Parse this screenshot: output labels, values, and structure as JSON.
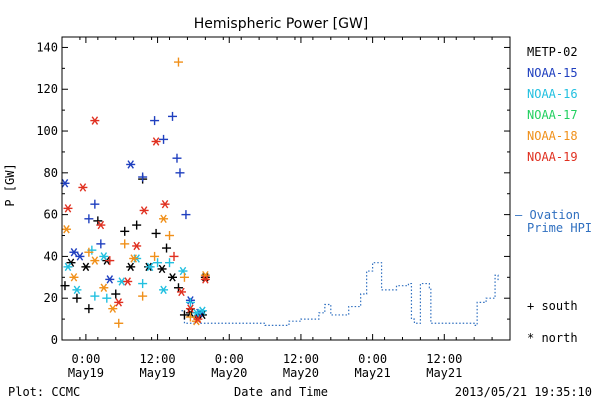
{
  "chart_data": {
    "type": "scatter",
    "title": "Hemispheric Power [GW]",
    "ylabel": "P [GW]",
    "xlabel": "Date and Time",
    "ylim": [
      0,
      145
    ],
    "yticks": [
      0,
      20,
      40,
      60,
      80,
      100,
      120,
      140
    ],
    "xlim": [
      "2013-05-18 20:00",
      "2013-05-21 23:00"
    ],
    "xticks": [
      {
        "x": "2013-05-19 00:00",
        "time": "0:00",
        "date": "May19"
      },
      {
        "x": "2013-05-19 12:00",
        "time": "12:00",
        "date": "May19"
      },
      {
        "x": "2013-05-20 00:00",
        "time": "0:00",
        "date": "May20"
      },
      {
        "x": "2013-05-20 12:00",
        "time": "12:00",
        "date": "May20"
      },
      {
        "x": "2013-05-21 00:00",
        "time": "0:00",
        "date": "May21"
      },
      {
        "x": "2013-05-21 12:00",
        "time": "12:00",
        "date": "May21"
      }
    ],
    "footer_left": "Plot: CCMC",
    "footer_right": "2013/05/21 19:35:10",
    "marker_legend": {
      "south": "+ south",
      "north": "* north"
    },
    "series": [
      {
        "name": "METP-02",
        "color": "#000000",
        "points": [
          {
            "x": "2013-05-18 20:30",
            "y": 26,
            "hemi": "south"
          },
          {
            "x": "2013-05-18 21:30",
            "y": 37,
            "hemi": "north"
          },
          {
            "x": "2013-05-18 22:30",
            "y": 20,
            "hemi": "south"
          },
          {
            "x": "2013-05-19 00:00",
            "y": 35,
            "hemi": "north"
          },
          {
            "x": "2013-05-19 00:30",
            "y": 15,
            "hemi": "south"
          },
          {
            "x": "2013-05-19 02:00",
            "y": 57,
            "hemi": "south"
          },
          {
            "x": "2013-05-19 03:30",
            "y": 38,
            "hemi": "north"
          },
          {
            "x": "2013-05-19 05:00",
            "y": 22,
            "hemi": "south"
          },
          {
            "x": "2013-05-19 06:30",
            "y": 52,
            "hemi": "south"
          },
          {
            "x": "2013-05-19 07:30",
            "y": 35,
            "hemi": "north"
          },
          {
            "x": "2013-05-19 08:30",
            "y": 55,
            "hemi": "south"
          },
          {
            "x": "2013-05-19 09:30",
            "y": 77,
            "hemi": "south"
          },
          {
            "x": "2013-05-19 10:30",
            "y": 35,
            "hemi": "north"
          },
          {
            "x": "2013-05-19 11:45",
            "y": 51,
            "hemi": "south"
          },
          {
            "x": "2013-05-19 12:45",
            "y": 34,
            "hemi": "north"
          },
          {
            "x": "2013-05-19 13:30",
            "y": 44,
            "hemi": "south"
          },
          {
            "x": "2013-05-19 14:30",
            "y": 30,
            "hemi": "north"
          },
          {
            "x": "2013-05-19 15:30",
            "y": 25,
            "hemi": "south"
          },
          {
            "x": "2013-05-19 16:30",
            "y": 12,
            "hemi": "south"
          },
          {
            "x": "2013-05-19 17:30",
            "y": 13,
            "hemi": "north"
          },
          {
            "x": "2013-05-19 18:30",
            "y": 11,
            "hemi": "south"
          },
          {
            "x": "2013-05-19 19:30",
            "y": 12,
            "hemi": "north"
          },
          {
            "x": "2013-05-19 20:00",
            "y": 30,
            "hemi": "north"
          }
        ]
      },
      {
        "name": "NOAA-15",
        "color": "#1f3fbf",
        "points": [
          {
            "x": "2013-05-18 20:30",
            "y": 75,
            "hemi": "north"
          },
          {
            "x": "2013-05-18 22:00",
            "y": 42,
            "hemi": "north"
          },
          {
            "x": "2013-05-18 23:00",
            "y": 40,
            "hemi": "north"
          },
          {
            "x": "2013-05-19 00:30",
            "y": 58,
            "hemi": "south"
          },
          {
            "x": "2013-05-19 01:30",
            "y": 65,
            "hemi": "south"
          },
          {
            "x": "2013-05-19 02:30",
            "y": 46,
            "hemi": "south"
          },
          {
            "x": "2013-05-19 04:00",
            "y": 29,
            "hemi": "north"
          },
          {
            "x": "2013-05-19 07:30",
            "y": 84,
            "hemi": "north"
          },
          {
            "x": "2013-05-19 09:30",
            "y": 78,
            "hemi": "south"
          },
          {
            "x": "2013-05-19 11:30",
            "y": 105,
            "hemi": "south"
          },
          {
            "x": "2013-05-19 13:00",
            "y": 96,
            "hemi": "south"
          },
          {
            "x": "2013-05-19 14:30",
            "y": 107,
            "hemi": "south"
          },
          {
            "x": "2013-05-19 15:15",
            "y": 87,
            "hemi": "south"
          },
          {
            "x": "2013-05-19 15:45",
            "y": 80,
            "hemi": "south"
          },
          {
            "x": "2013-05-19 16:45",
            "y": 60,
            "hemi": "south"
          },
          {
            "x": "2013-05-19 17:30",
            "y": 19,
            "hemi": "north"
          },
          {
            "x": "2013-05-19 19:00",
            "y": 13,
            "hemi": "north"
          }
        ]
      },
      {
        "name": "NOAA-16",
        "color": "#22c0e0",
        "points": [
          {
            "x": "2013-05-18 21:00",
            "y": 35,
            "hemi": "north"
          },
          {
            "x": "2013-05-18 22:30",
            "y": 24,
            "hemi": "north"
          },
          {
            "x": "2013-05-19 01:00",
            "y": 43,
            "hemi": "south"
          },
          {
            "x": "2013-05-19 01:30",
            "y": 21,
            "hemi": "south"
          },
          {
            "x": "2013-05-19 03:00",
            "y": 40,
            "hemi": "north"
          },
          {
            "x": "2013-05-19 03:30",
            "y": 20,
            "hemi": "south"
          },
          {
            "x": "2013-05-19 06:00",
            "y": 28,
            "hemi": "north"
          },
          {
            "x": "2013-05-19 08:30",
            "y": 39,
            "hemi": "north"
          },
          {
            "x": "2013-05-19 09:30",
            "y": 27,
            "hemi": "south"
          },
          {
            "x": "2013-05-19 10:45",
            "y": 35,
            "hemi": "north"
          },
          {
            "x": "2013-05-19 12:00",
            "y": 37,
            "hemi": "south"
          },
          {
            "x": "2013-05-19 13:00",
            "y": 24,
            "hemi": "north"
          },
          {
            "x": "2013-05-19 14:00",
            "y": 37,
            "hemi": "south"
          },
          {
            "x": "2013-05-19 16:15",
            "y": 33,
            "hemi": "north"
          },
          {
            "x": "2013-05-19 17:30",
            "y": 18,
            "hemi": "south"
          },
          {
            "x": "2013-05-19 18:30",
            "y": 13,
            "hemi": "north"
          },
          {
            "x": "2013-05-19 19:30",
            "y": 14,
            "hemi": "north"
          }
        ]
      },
      {
        "name": "NOAA-17",
        "color": "#22d060",
        "points": []
      },
      {
        "name": "NOAA-18",
        "color": "#f0901a",
        "points": [
          {
            "x": "2013-05-18 20:45",
            "y": 53,
            "hemi": "north"
          },
          {
            "x": "2013-05-18 22:00",
            "y": 30,
            "hemi": "north"
          },
          {
            "x": "2013-05-19 00:30",
            "y": 42,
            "hemi": "south"
          },
          {
            "x": "2013-05-19 01:30",
            "y": 38,
            "hemi": "north"
          },
          {
            "x": "2013-05-19 03:00",
            "y": 25,
            "hemi": "north"
          },
          {
            "x": "2013-05-19 04:30",
            "y": 15,
            "hemi": "north"
          },
          {
            "x": "2013-05-19 05:30",
            "y": 8,
            "hemi": "south"
          },
          {
            "x": "2013-05-19 06:30",
            "y": 46,
            "hemi": "south"
          },
          {
            "x": "2013-05-19 08:00",
            "y": 39,
            "hemi": "north"
          },
          {
            "x": "2013-05-19 09:30",
            "y": 21,
            "hemi": "south"
          },
          {
            "x": "2013-05-19 11:30",
            "y": 40,
            "hemi": "south"
          },
          {
            "x": "2013-05-19 13:00",
            "y": 58,
            "hemi": "north"
          },
          {
            "x": "2013-05-19 14:00",
            "y": 50,
            "hemi": "south"
          },
          {
            "x": "2013-05-19 15:30",
            "y": 133,
            "hemi": "south"
          },
          {
            "x": "2013-05-19 16:30",
            "y": 30,
            "hemi": "south"
          },
          {
            "x": "2013-05-19 17:30",
            "y": 11,
            "hemi": "south"
          },
          {
            "x": "2013-05-19 18:30",
            "y": 9,
            "hemi": "north"
          },
          {
            "x": "2013-05-19 20:00",
            "y": 31,
            "hemi": "north"
          }
        ]
      },
      {
        "name": "NOAA-19",
        "color": "#e03020",
        "points": [
          {
            "x": "2013-05-18 21:00",
            "y": 63,
            "hemi": "north"
          },
          {
            "x": "2013-05-18 23:30",
            "y": 73,
            "hemi": "north"
          },
          {
            "x": "2013-05-19 01:30",
            "y": 105,
            "hemi": "north"
          },
          {
            "x": "2013-05-19 02:30",
            "y": 55,
            "hemi": "north"
          },
          {
            "x": "2013-05-19 04:00",
            "y": 38,
            "hemi": "south"
          },
          {
            "x": "2013-05-19 05:30",
            "y": 18,
            "hemi": "north"
          },
          {
            "x": "2013-05-19 07:00",
            "y": 28,
            "hemi": "north"
          },
          {
            "x": "2013-05-19 08:30",
            "y": 45,
            "hemi": "north"
          },
          {
            "x": "2013-05-19 09:45",
            "y": 62,
            "hemi": "north"
          },
          {
            "x": "2013-05-19 11:45",
            "y": 95,
            "hemi": "north"
          },
          {
            "x": "2013-05-19 13:15",
            "y": 65,
            "hemi": "north"
          },
          {
            "x": "2013-05-19 14:45",
            "y": 40,
            "hemi": "south"
          },
          {
            "x": "2013-05-19 16:00",
            "y": 23,
            "hemi": "north"
          },
          {
            "x": "2013-05-19 17:30",
            "y": 15,
            "hemi": "north"
          },
          {
            "x": "2013-05-19 18:45",
            "y": 10,
            "hemi": "north"
          },
          {
            "x": "2013-05-19 20:00",
            "y": 29,
            "hemi": "north"
          }
        ]
      }
    ],
    "ovation": {
      "name": "— Ovation Prime HPI",
      "label_line1": "— Ovation",
      "label_line2": "Prime HPI",
      "color": "#3070c0",
      "points": [
        {
          "x": "2013-05-19 16:00",
          "y": 14
        },
        {
          "x": "2013-05-19 16:30",
          "y": 8
        },
        {
          "x": "2013-05-19 20:00",
          "y": 8
        },
        {
          "x": "2013-05-19 22:00",
          "y": 8
        },
        {
          "x": "2013-05-20 06:00",
          "y": 7
        },
        {
          "x": "2013-05-20 10:00",
          "y": 9
        },
        {
          "x": "2013-05-20 12:00",
          "y": 10
        },
        {
          "x": "2013-05-20 15:00",
          "y": 13
        },
        {
          "x": "2013-05-20 16:00",
          "y": 17
        },
        {
          "x": "2013-05-20 17:00",
          "y": 12
        },
        {
          "x": "2013-05-20 20:00",
          "y": 16
        },
        {
          "x": "2013-05-20 22:00",
          "y": 22
        },
        {
          "x": "2013-05-20 23:00",
          "y": 33
        },
        {
          "x": "2013-05-21 00:00",
          "y": 37
        },
        {
          "x": "2013-05-21 01:30",
          "y": 24
        },
        {
          "x": "2013-05-21 04:00",
          "y": 26
        },
        {
          "x": "2013-05-21 06:00",
          "y": 27
        },
        {
          "x": "2013-05-21 06:30",
          "y": 10
        },
        {
          "x": "2013-05-21 07:00",
          "y": 8
        },
        {
          "x": "2013-05-21 08:00",
          "y": 27
        },
        {
          "x": "2013-05-21 09:30",
          "y": 25
        },
        {
          "x": "2013-05-21 09:45",
          "y": 8
        },
        {
          "x": "2013-05-21 10:00",
          "y": 8
        },
        {
          "x": "2013-05-21 17:00",
          "y": 7
        },
        {
          "x": "2013-05-21 17:30",
          "y": 18
        },
        {
          "x": "2013-05-21 19:00",
          "y": 20
        },
        {
          "x": "2013-05-21 20:30",
          "y": 31
        },
        {
          "x": "2013-05-21 21:00",
          "y": 28
        }
      ]
    }
  }
}
